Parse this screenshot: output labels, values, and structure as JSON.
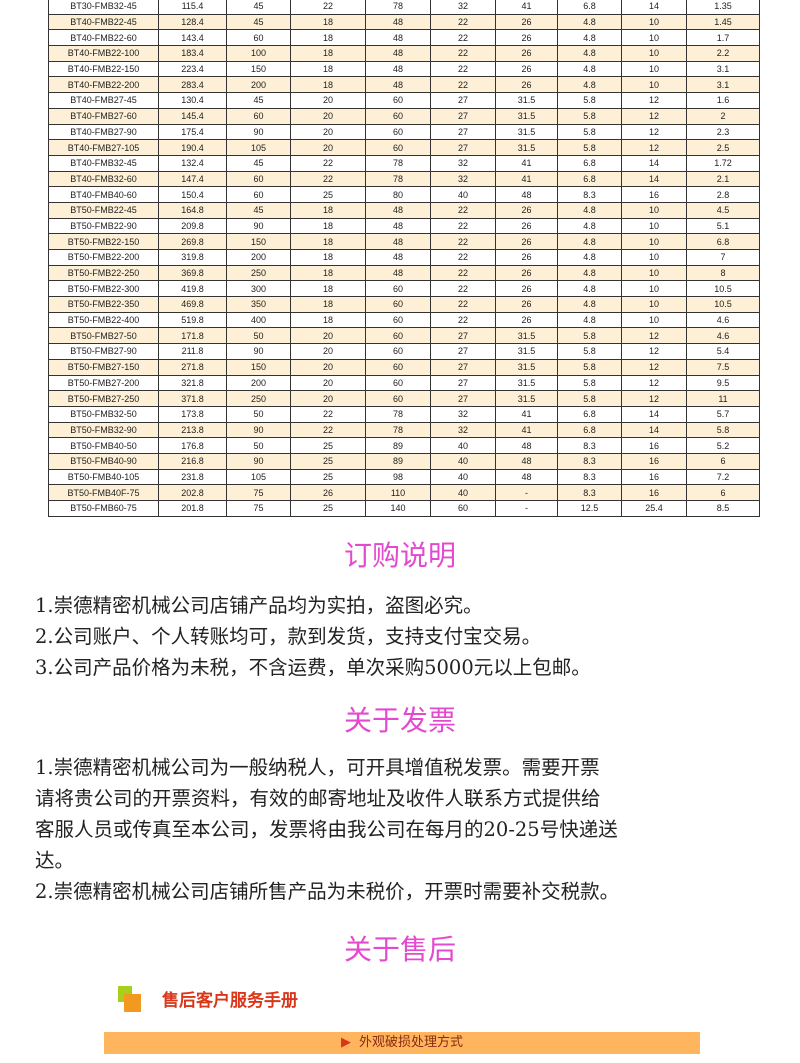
{
  "table": {
    "rows": [
      [
        "BT30-FMB32-45",
        "115.4",
        "45",
        "22",
        "78",
        "32",
        "41",
        "6.8",
        "14",
        "1.35"
      ],
      [
        "BT40-FMB22-45",
        "128.4",
        "45",
        "18",
        "48",
        "22",
        "26",
        "4.8",
        "10",
        "1.45"
      ],
      [
        "BT40-FMB22-60",
        "143.4",
        "60",
        "18",
        "48",
        "22",
        "26",
        "4.8",
        "10",
        "1.7"
      ],
      [
        "BT40-FMB22-100",
        "183.4",
        "100",
        "18",
        "48",
        "22",
        "26",
        "4.8",
        "10",
        "2.2"
      ],
      [
        "BT40-FMB22-150",
        "223.4",
        "150",
        "18",
        "48",
        "22",
        "26",
        "4.8",
        "10",
        "3.1"
      ],
      [
        "BT40-FMB22-200",
        "283.4",
        "200",
        "18",
        "48",
        "22",
        "26",
        "4.8",
        "10",
        "3.1"
      ],
      [
        "BT40-FMB27-45",
        "130.4",
        "45",
        "20",
        "60",
        "27",
        "31.5",
        "5.8",
        "12",
        "1.6"
      ],
      [
        "BT40-FMB27-60",
        "145.4",
        "60",
        "20",
        "60",
        "27",
        "31.5",
        "5.8",
        "12",
        "2"
      ],
      [
        "BT40-FMB27-90",
        "175.4",
        "90",
        "20",
        "60",
        "27",
        "31.5",
        "5.8",
        "12",
        "2.3"
      ],
      [
        "BT40-FMB27-105",
        "190.4",
        "105",
        "20",
        "60",
        "27",
        "31.5",
        "5.8",
        "12",
        "2.5"
      ],
      [
        "BT40-FMB32-45",
        "132.4",
        "45",
        "22",
        "78",
        "32",
        "41",
        "6.8",
        "14",
        "1.72"
      ],
      [
        "BT40-FMB32-60",
        "147.4",
        "60",
        "22",
        "78",
        "32",
        "41",
        "6.8",
        "14",
        "2.1"
      ],
      [
        "BT40-FMB40-60",
        "150.4",
        "60",
        "25",
        "80",
        "40",
        "48",
        "8.3",
        "16",
        "2.8"
      ],
      [
        "BT50-FMB22-45",
        "164.8",
        "45",
        "18",
        "48",
        "22",
        "26",
        "4.8",
        "10",
        "4.5"
      ],
      [
        "BT50-FMB22-90",
        "209.8",
        "90",
        "18",
        "48",
        "22",
        "26",
        "4.8",
        "10",
        "5.1"
      ],
      [
        "BT50-FMB22-150",
        "269.8",
        "150",
        "18",
        "48",
        "22",
        "26",
        "4.8",
        "10",
        "6.8"
      ],
      [
        "BT50-FMB22-200",
        "319.8",
        "200",
        "18",
        "48",
        "22",
        "26",
        "4.8",
        "10",
        "7"
      ],
      [
        "BT50-FMB22-250",
        "369.8",
        "250",
        "18",
        "48",
        "22",
        "26",
        "4.8",
        "10",
        "8"
      ],
      [
        "BT50-FMB22-300",
        "419.8",
        "300",
        "18",
        "60",
        "22",
        "26",
        "4.8",
        "10",
        "10.5"
      ],
      [
        "BT50-FMB22-350",
        "469.8",
        "350",
        "18",
        "60",
        "22",
        "26",
        "4.8",
        "10",
        "10.5"
      ],
      [
        "BT50-FMB22-400",
        "519.8",
        "400",
        "18",
        "60",
        "22",
        "26",
        "4.8",
        "10",
        "4.6"
      ],
      [
        "BT50-FMB27-50",
        "171.8",
        "50",
        "20",
        "60",
        "27",
        "31.5",
        "5.8",
        "12",
        "4.6"
      ],
      [
        "BT50-FMB27-90",
        "211.8",
        "90",
        "20",
        "60",
        "27",
        "31.5",
        "5.8",
        "12",
        "5.4"
      ],
      [
        "BT50-FMB27-150",
        "271.8",
        "150",
        "20",
        "60",
        "27",
        "31.5",
        "5.8",
        "12",
        "7.5"
      ],
      [
        "BT50-FMB27-200",
        "321.8",
        "200",
        "20",
        "60",
        "27",
        "31.5",
        "5.8",
        "12",
        "9.5"
      ],
      [
        "BT50-FMB27-250",
        "371.8",
        "250",
        "20",
        "60",
        "27",
        "31.5",
        "5.8",
        "12",
        "11"
      ],
      [
        "BT50-FMB32-50",
        "173.8",
        "50",
        "22",
        "78",
        "32",
        "41",
        "6.8",
        "14",
        "5.7"
      ],
      [
        "BT50-FMB32-90",
        "213.8",
        "90",
        "22",
        "78",
        "32",
        "41",
        "6.8",
        "14",
        "5.8"
      ],
      [
        "BT50-FMB40-50",
        "176.8",
        "50",
        "25",
        "89",
        "40",
        "48",
        "8.3",
        "16",
        "5.2"
      ],
      [
        "BT50-FMB40-90",
        "216.8",
        "90",
        "25",
        "89",
        "40",
        "48",
        "8.3",
        "16",
        "6"
      ],
      [
        "BT50-FMB40-105",
        "231.8",
        "105",
        "25",
        "98",
        "40",
        "48",
        "8.3",
        "16",
        "7.2"
      ],
      [
        "BT50-FMB40F-75",
        "202.8",
        "75",
        "26",
        "110",
        "40",
        "-",
        "8.3",
        "16",
        "6"
      ],
      [
        "BT50-FMB60-75",
        "201.8",
        "75",
        "25",
        "140",
        "60",
        "-",
        "12.5",
        "25.4",
        "8.5"
      ]
    ]
  },
  "order": {
    "title": "订购说明",
    "lines": [
      "1.崇德精密机械公司店铺产品均为实拍，盗图必究。",
      "2.公司账户、个人转账均可，款到发货，支持支付宝交易。",
      "3.公司产品价格为未税，不含运费，单次采购5000元以上包邮。"
    ]
  },
  "invoice": {
    "title": "关于发票",
    "lines": [
      "1.崇德精密机械公司为一般纳税人，可开具增值税发票。需要开票",
      "请将贵公司的开票资料，有效的邮寄地址及收件人联系方式提供给",
      "客服人员或传真至本公司，发票将由我公司在每月的20-25号快递送",
      "达。",
      "2.崇德精密机械公司店铺所售产品为未税价，开票时需要补交税款。"
    ]
  },
  "aftersale": {
    "title": "关于售后",
    "banner_title": "售后客户服务手册",
    "bar_label": "外观破损处理方式",
    "colors": {
      "title": "#e44ad0",
      "bar": "#ffb55e",
      "banner_text": "#d9361a"
    }
  }
}
